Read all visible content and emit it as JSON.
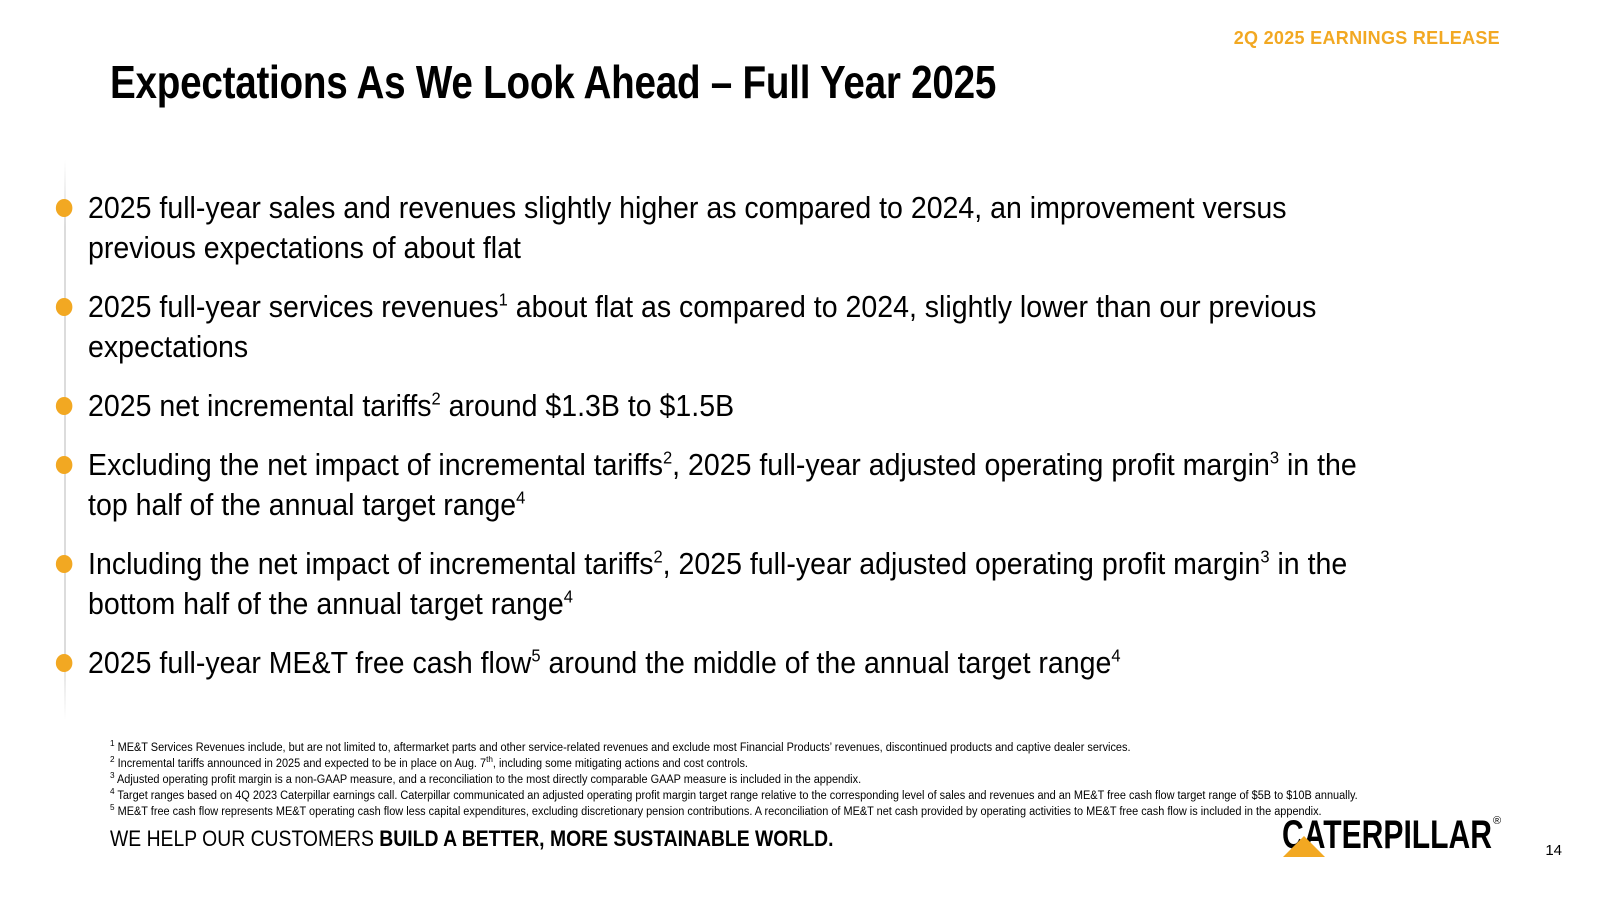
{
  "header": {
    "release_label": "2Q 2025 EARNINGS RELEASE",
    "title": "Expectations As We Look Ahead – Full Year 2025"
  },
  "bullets": [
    {
      "parts": [
        {
          "t": "2025 full-year sales and revenues slightly higher as compared to 2024, an improvement versus previous expectations of about flat"
        }
      ]
    },
    {
      "parts": [
        {
          "t": "2025 full-year services revenues"
        },
        {
          "sup": "1"
        },
        {
          "t": " about flat as compared to 2024, slightly lower than our previous expectations"
        }
      ]
    },
    {
      "parts": [
        {
          "t": "2025 net incremental tariffs"
        },
        {
          "sup": "2"
        },
        {
          "t": " around $1.3B to $1.5B"
        }
      ]
    },
    {
      "parts": [
        {
          "t": "Excluding the net impact of incremental tariffs"
        },
        {
          "sup": "2"
        },
        {
          "t": ", 2025 full-year adjusted operating profit margin"
        },
        {
          "sup": "3"
        },
        {
          "t": " in the top half of the annual target range"
        },
        {
          "sup": "4"
        }
      ]
    },
    {
      "parts": [
        {
          "t": "Including the net impact of incremental tariffs"
        },
        {
          "sup": "2"
        },
        {
          "t": ", 2025 full-year adjusted operating profit margin"
        },
        {
          "sup": "3"
        },
        {
          "t": " in the bottom half of the annual target range"
        },
        {
          "sup": "4"
        }
      ]
    },
    {
      "parts": [
        {
          "t": "2025 full-year ME&T free cash flow"
        },
        {
          "sup": "5"
        },
        {
          "t": " around the middle of the annual target range"
        },
        {
          "sup": "4"
        }
      ]
    }
  ],
  "footnotes": [
    {
      "parts": [
        {
          "sup": "1"
        },
        {
          "t": " ME&T Services Revenues include, but are not limited to, aftermarket parts and other service-related revenues and exclude most Financial Products’ revenues, discontinued products and captive dealer services."
        }
      ]
    },
    {
      "parts": [
        {
          "sup": "2"
        },
        {
          "t": " Incremental tariffs announced in 2025 and expected to be in place on Aug. 7"
        },
        {
          "sup": "th"
        },
        {
          "t": ", including some mitigating actions and cost controls."
        }
      ]
    },
    {
      "parts": [
        {
          "sup": "3"
        },
        {
          "t": "  Adjusted operating profit margin is a non-GAAP measure, and a reconciliation to the most directly comparable GAAP measure is included in the appendix."
        }
      ]
    },
    {
      "parts": [
        {
          "sup": "4"
        },
        {
          "t": " Target ranges based on 4Q 2023 Caterpillar earnings call. Caterpillar communicated an adjusted operating profit margin target range relative to the corresponding level of sales and revenues and an ME&T free cash flow target range of $5B to $10B annually."
        }
      ]
    },
    {
      "parts": [
        {
          "sup": "5"
        },
        {
          "t": " ME&T free cash flow represents ME&T operating cash flow less capital expenditures, excluding discretionary pension contributions. A reconciliation of ME&T net cash provided by operating activities to ME&T free cash flow is included in the appendix."
        }
      ]
    }
  ],
  "footer": {
    "tagline_regular": "WE HELP OUR CUSTOMERS ",
    "tagline_bold": "BUILD A BETTER, MORE SUSTAINABLE WORLD.",
    "logo_text": "CATERPILLAR",
    "logo_mark": "®",
    "logo_icon": "caterpillar-triangle-icon",
    "page_number": "14"
  },
  "colors": {
    "accent": "#F2A822",
    "text": "#000000",
    "background": "#FFFFFF"
  }
}
